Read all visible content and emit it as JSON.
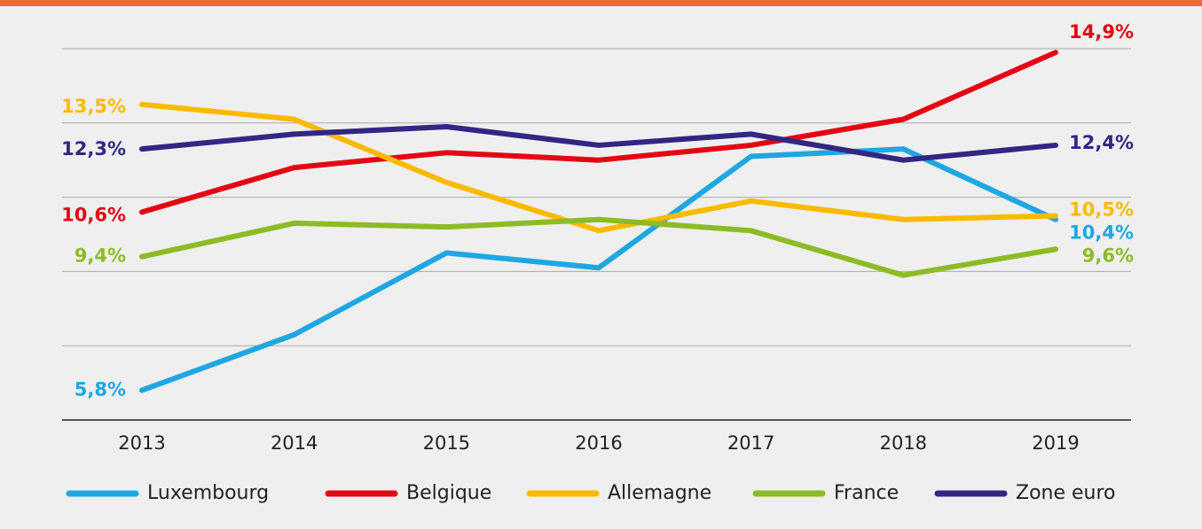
{
  "chart_data": {
    "type": "line",
    "categories": [
      "2013",
      "2014",
      "2015",
      "2016",
      "2017",
      "2018",
      "2019"
    ],
    "series": [
      {
        "name": "Luxembourg",
        "color": "#1ea7e1",
        "values": [
          5.8,
          7.3,
          9.5,
          9.1,
          12.1,
          12.3,
          10.4
        ],
        "value_labels": [
          "5,8%",
          null,
          null,
          null,
          null,
          null,
          "10,4%"
        ]
      },
      {
        "name": "Belgique",
        "color": "#e30613",
        "values": [
          10.6,
          11.8,
          12.2,
          12.0,
          12.4,
          13.1,
          14.9
        ],
        "value_labels": [
          "10,6%",
          null,
          null,
          null,
          null,
          null,
          "14,9%"
        ]
      },
      {
        "name": "Allemagne",
        "color": "#fbba00",
        "values": [
          13.5,
          13.1,
          11.4,
          10.1,
          10.9,
          10.4,
          10.5
        ],
        "value_labels": [
          "13,5%",
          null,
          null,
          null,
          null,
          null,
          "10,5%"
        ]
      },
      {
        "name": "France",
        "color": "#8dbb25",
        "values": [
          9.4,
          10.3,
          10.2,
          10.4,
          10.1,
          8.9,
          9.6
        ],
        "value_labels": [
          "9,4%",
          null,
          null,
          null,
          null,
          null,
          "9,6%"
        ]
      },
      {
        "name": "Zone euro",
        "color": "#312783",
        "values": [
          12.3,
          12.7,
          12.9,
          12.4,
          12.7,
          12.0,
          12.4
        ],
        "value_labels": [
          "12,3%",
          null,
          null,
          null,
          null,
          null,
          "12,4%"
        ]
      }
    ],
    "ylim": [
      5,
      15
    ],
    "yticks": [
      7,
      9,
      11,
      13,
      15
    ],
    "grid": true
  }
}
